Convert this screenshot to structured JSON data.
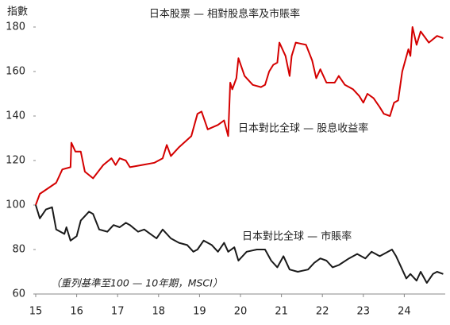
{
  "chart_data": {
    "type": "line",
    "title": "日本股票 — 相對股息率及市賬率",
    "y_label": "指數",
    "annotations": [
      "日本對比全球 — 股息收益率",
      "日本對比全球 — 市賬率",
      "（重列基準至100 — 10年期，MSCI）"
    ],
    "xlim": [
      15,
      25
    ],
    "xticks": [
      15,
      16,
      17,
      18,
      19,
      20,
      21,
      22,
      23,
      24
    ],
    "ylim": [
      60,
      180
    ],
    "yticks": [
      60,
      80,
      100,
      120,
      140,
      160,
      180
    ],
    "grid": false,
    "series": [
      {
        "name": "日本對比全球 — 股息收益率",
        "color": "#d40000",
        "x": [
          15,
          15.1,
          15.5,
          15.65,
          15.85,
          15.87,
          15.97,
          16.1,
          16.2,
          16.4,
          16.65,
          16.85,
          16.95,
          17.05,
          17.2,
          17.3,
          17.6,
          17.9,
          18.1,
          18.2,
          18.3,
          18.5,
          18.8,
          18.95,
          19.05,
          19.2,
          19.45,
          19.6,
          19.7,
          19.75,
          19.8,
          19.9,
          19.95,
          20.1,
          20.3,
          20.5,
          20.6,
          20.7,
          20.8,
          20.9,
          20.95,
          21.1,
          21.2,
          21.25,
          21.35,
          21.6,
          21.75,
          21.85,
          21.95,
          22.1,
          22.3,
          22.4,
          22.55,
          22.75,
          22.9,
          23.0,
          23.1,
          23.25,
          23.4,
          23.5,
          23.65,
          23.75,
          23.85,
          23.95,
          24.1,
          24.15,
          24.2,
          24.3,
          24.4,
          24.6,
          24.8,
          24.95
        ],
        "values": [
          100,
          105,
          110,
          116,
          117,
          128,
          124,
          124,
          115,
          112,
          118,
          121,
          118,
          121,
          120,
          117,
          118,
          119,
          121,
          127,
          122,
          126,
          131,
          141,
          142,
          134,
          136,
          138,
          131,
          155,
          152,
          157,
          166,
          158,
          154,
          153,
          154,
          160,
          163,
          164,
          173,
          167,
          158,
          167,
          173,
          172,
          165,
          157,
          161,
          155,
          155,
          158,
          154,
          152,
          149,
          146,
          150,
          148,
          144,
          141,
          140,
          146,
          147,
          160,
          170,
          167,
          180,
          172,
          178,
          173,
          176,
          175
        ]
      },
      {
        "name": "日本對比全球 — 市賬率",
        "color": "#1a1a1a",
        "x": [
          15,
          15.1,
          15.25,
          15.4,
          15.5,
          15.7,
          15.75,
          15.85,
          16.0,
          16.1,
          16.3,
          16.4,
          16.55,
          16.75,
          16.9,
          17.05,
          17.2,
          17.3,
          17.5,
          17.65,
          17.8,
          17.95,
          18.1,
          18.3,
          18.5,
          18.7,
          18.85,
          18.95,
          19.1,
          19.3,
          19.45,
          19.6,
          19.7,
          19.85,
          19.95,
          20.15,
          20.4,
          20.6,
          20.75,
          20.9,
          21.05,
          21.2,
          21.4,
          21.65,
          21.8,
          21.95,
          22.1,
          22.25,
          22.4,
          22.65,
          22.85,
          23.05,
          23.2,
          23.4,
          23.5,
          23.7,
          23.8,
          23.9,
          24.05,
          24.15,
          24.3,
          24.4,
          24.55,
          24.7,
          24.8,
          24.95
        ],
        "values": [
          100,
          94,
          98,
          99,
          89,
          87,
          90,
          84,
          86,
          93,
          97,
          96,
          89,
          88,
          91,
          90,
          92,
          91,
          88,
          89,
          87,
          85,
          89,
          85,
          83,
          82,
          79,
          80,
          84,
          82,
          79,
          83,
          79,
          81,
          75,
          79,
          80,
          80,
          75,
          72,
          77,
          71,
          70,
          71,
          74,
          76,
          75,
          72,
          73,
          76,
          78,
          76,
          79,
          77,
          78,
          80,
          77,
          73,
          67,
          69,
          66,
          70,
          65,
          69,
          70,
          69
        ]
      }
    ]
  }
}
